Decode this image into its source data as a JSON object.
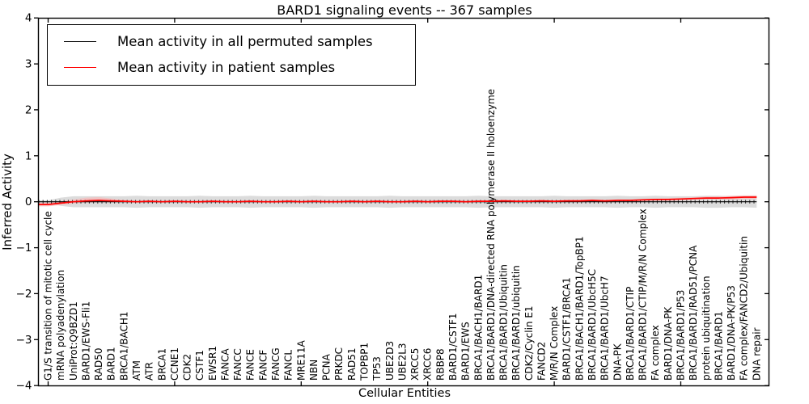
{
  "chart_data": {
    "type": "line",
    "title": "BARD1 signaling events -- 367 samples",
    "xlabel": "Cellular Entities",
    "ylabel": "Inferred Activity",
    "ylim": [
      -4,
      4
    ],
    "grid": false,
    "legend_position": "upper left",
    "ytick_values": [
      4,
      3,
      2,
      1,
      0,
      -1,
      -2,
      -3,
      -4
    ],
    "ytick_labels": [
      "4",
      "3",
      "2",
      "1",
      "0",
      "−1",
      "−2",
      "−3",
      "−4"
    ],
    "categories": [
      "G1/S transition of mitotic cell cycle",
      "mRNA polyadenylation",
      "UniProt:Q9BZD1",
      "BARD1/EWS-Fli1",
      "RAD50",
      "BARD1",
      "BRCA1/BACH1",
      "ATM",
      "ATR",
      "BRCA1",
      "CCNE1",
      "CDK2",
      "CSTF1",
      "EWSR1",
      "FANCA",
      "FANCC",
      "FANCE",
      "FANCF",
      "FANCG",
      "FANCL",
      "MRE11A",
      "NBN",
      "PCNA",
      "PRKDC",
      "RAD51",
      "TOPBP1",
      "TP53",
      "UBE2D3",
      "UBE2L3",
      "XRCC5",
      "XRCC6",
      "RBBP8",
      "BARD1/CSTF1",
      "BARD1/EWS",
      "BRCA1/BACH1/BARD1",
      "BRCA1/BARD1/DNA-directed RNA polymerase II holoenzyme",
      "BRCA1/BARD1/Ubiquitin",
      "BRCA1/BARD1/ubiquitin",
      "CDK2/Cyclin E1",
      "FANCD2",
      "M/R/N Complex",
      "BARD1/CSTF1/BRCA1",
      "BRCA1/BACH1/BARD1/TopBP1",
      "BRCA1/BARD1/UbcH5C",
      "BRCA1/BARD1/UbcH7",
      "DNA-PK",
      "BRCA1/BARD1/CTIP",
      "BRCA1/BARD1/CTIP/M/R/N Complex",
      "FA complex",
      "BARD1/DNA-PK",
      "BRCA1/BARD1/P53",
      "BRCA1/BARD1/RAD51/PCNA",
      "protein ubiquitination",
      "BRCA1/BARD1",
      "BARD1/DNA-PK/P53",
      "FA complex/FANCD2/Ubiquitin",
      "DNA repair"
    ],
    "series": [
      {
        "name": "Mean activity in all permuted samples",
        "color": "#000000",
        "values": [
          0,
          0,
          0,
          0,
          0,
          0,
          0,
          0,
          0,
          0,
          0,
          0,
          0,
          0,
          0,
          0,
          0,
          0,
          0,
          0,
          0,
          0,
          0,
          0,
          0,
          0,
          0,
          0,
          0,
          0,
          0,
          0,
          0,
          0,
          0,
          0,
          0,
          0,
          0,
          0,
          0,
          0,
          0,
          0,
          0,
          0,
          0,
          0,
          0,
          0,
          0,
          0,
          0,
          0,
          0,
          0,
          0
        ]
      },
      {
        "name": "Mean activity in patient samples",
        "color": "#ff0000",
        "values": [
          -0.06,
          -0.03,
          0.0,
          0.02,
          0.03,
          0.02,
          0.01,
          0.0,
          0.01,
          0.0,
          0.01,
          0.0,
          0.0,
          0.01,
          0.0,
          0.0,
          0.01,
          0.0,
          0.0,
          0.01,
          0.0,
          0.01,
          0.0,
          0.0,
          0.01,
          0.0,
          0.01,
          0.0,
          0.0,
          0.01,
          0.0,
          0.01,
          0.01,
          0.0,
          0.01,
          0.01,
          0.02,
          0.01,
          0.01,
          0.02,
          0.01,
          0.02,
          0.02,
          0.03,
          0.02,
          0.03,
          0.03,
          0.04,
          0.05,
          0.05,
          0.06,
          0.07,
          0.08,
          0.08,
          0.09,
          0.1,
          0.1
        ]
      }
    ],
    "bands": [
      {
        "series": "Mean activity in all permuted samples",
        "color": "#dcdcdc",
        "halfwidth": [
          0.03,
          0.09,
          0.12,
          0.12,
          0.12,
          0.12,
          0.12,
          0.13,
          0.12,
          0.12,
          0.12,
          0.12,
          0.13,
          0.12,
          0.12,
          0.12,
          0.13,
          0.12,
          0.12,
          0.12,
          0.12,
          0.13,
          0.12,
          0.12,
          0.12,
          0.12,
          0.12,
          0.13,
          0.12,
          0.12,
          0.12,
          0.12,
          0.12,
          0.12,
          0.13,
          0.12,
          0.12,
          0.12,
          0.12,
          0.12,
          0.13,
          0.12,
          0.12,
          0.12,
          0.12,
          0.13,
          0.12,
          0.12,
          0.13,
          0.12,
          0.12,
          0.12,
          0.13,
          0.13,
          0.12,
          0.12,
          0.13
        ]
      },
      {
        "series": "Mean activity in patient samples",
        "color": "#f6bcbc",
        "upper": [
          -0.02,
          0.01,
          0.05,
          0.09,
          0.1,
          0.07,
          0.04,
          0.02,
          0.03,
          0.02,
          0.03,
          0.02,
          0.02,
          0.03,
          0.02,
          0.02,
          0.03,
          0.02,
          0.02,
          0.03,
          0.02,
          0.03,
          0.02,
          0.02,
          0.03,
          0.02,
          0.03,
          0.02,
          0.02,
          0.03,
          0.02,
          0.03,
          0.03,
          0.02,
          0.03,
          0.03,
          0.04,
          0.03,
          0.03,
          0.04,
          0.03,
          0.04,
          0.04,
          0.05,
          0.04,
          0.05,
          0.05,
          0.06,
          0.07,
          0.08,
          0.09,
          0.1,
          0.11,
          0.12,
          0.13,
          0.14,
          0.14
        ],
        "lower": [
          -0.1,
          -0.07,
          -0.04,
          -0.02,
          -0.01,
          -0.01,
          -0.01,
          -0.02,
          -0.01,
          -0.02,
          -0.01,
          -0.02,
          -0.02,
          -0.01,
          -0.02,
          -0.02,
          -0.01,
          -0.02,
          -0.02,
          -0.01,
          -0.02,
          -0.01,
          -0.02,
          -0.02,
          -0.01,
          -0.02,
          -0.01,
          -0.02,
          -0.02,
          -0.01,
          -0.02,
          -0.01,
          -0.01,
          -0.02,
          -0.01,
          -0.01,
          0.0,
          -0.01,
          -0.01,
          0.0,
          -0.01,
          0.0,
          0.0,
          0.01,
          0.0,
          0.01,
          0.01,
          0.02,
          0.03,
          0.03,
          0.03,
          0.04,
          0.05,
          0.05,
          0.05,
          0.06,
          0.06
        ]
      }
    ]
  }
}
